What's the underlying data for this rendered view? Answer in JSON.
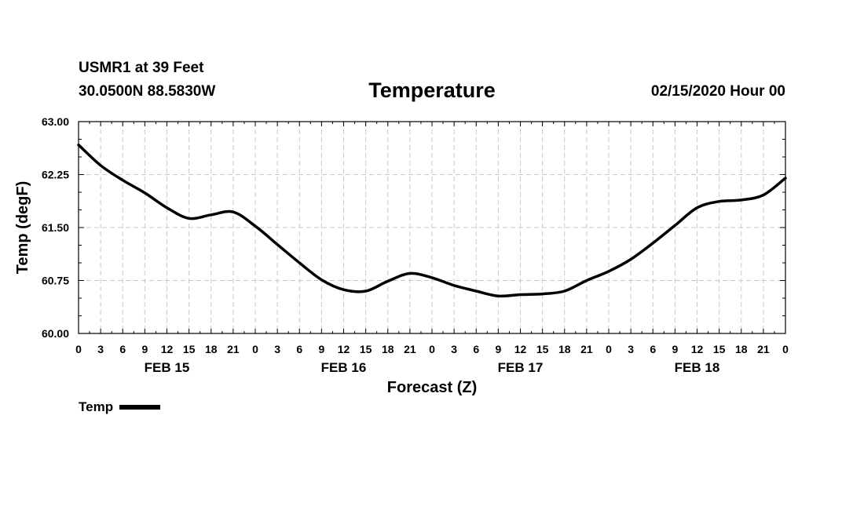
{
  "header": {
    "station": "USMR1 at 39 Feet",
    "coords": "30.0500N 88.5830W",
    "title": "Temperature",
    "forecast_time": "02/15/2020 Hour 00"
  },
  "chart_data": {
    "type": "line",
    "title": "Temperature",
    "xlabel": "Forecast (Z)",
    "ylabel": "Temp (degF)",
    "ylim": [
      60.0,
      63.0
    ],
    "yticks": [
      "60.00",
      "60.75",
      "61.50",
      "62.25",
      "63.00"
    ],
    "xlim": [
      0,
      96
    ],
    "xtick_labels": [
      "0",
      "3",
      "6",
      "9",
      "12",
      "15",
      "18",
      "21",
      "0",
      "3",
      "6",
      "9",
      "12",
      "15",
      "18",
      "21",
      "0",
      "3",
      "6",
      "9",
      "12",
      "15",
      "18",
      "21",
      "0",
      "3",
      "6",
      "9",
      "12",
      "15",
      "18",
      "21",
      "0"
    ],
    "day_labels": [
      "FEB 15",
      "FEB 16",
      "FEB 17",
      "FEB 18"
    ],
    "grid": true,
    "legend_position": "bottom-left",
    "series": [
      {
        "name": "Temp",
        "color": "#000000",
        "x": [
          0,
          3,
          6,
          9,
          12,
          15,
          18,
          21,
          24,
          27,
          30,
          33,
          36,
          39,
          42,
          45,
          48,
          51,
          54,
          57,
          60,
          63,
          66,
          69,
          72,
          75,
          78,
          81,
          84,
          87,
          90,
          93,
          96
        ],
        "y": [
          62.67,
          62.38,
          62.17,
          61.99,
          61.78,
          61.63,
          61.68,
          61.72,
          61.52,
          61.26,
          61.0,
          60.76,
          60.62,
          60.6,
          60.74,
          60.85,
          60.79,
          60.68,
          60.6,
          60.53,
          60.55,
          60.56,
          60.6,
          60.75,
          60.88,
          61.05,
          61.28,
          61.53,
          61.78,
          61.87,
          61.89,
          61.96,
          62.2
        ]
      }
    ]
  }
}
